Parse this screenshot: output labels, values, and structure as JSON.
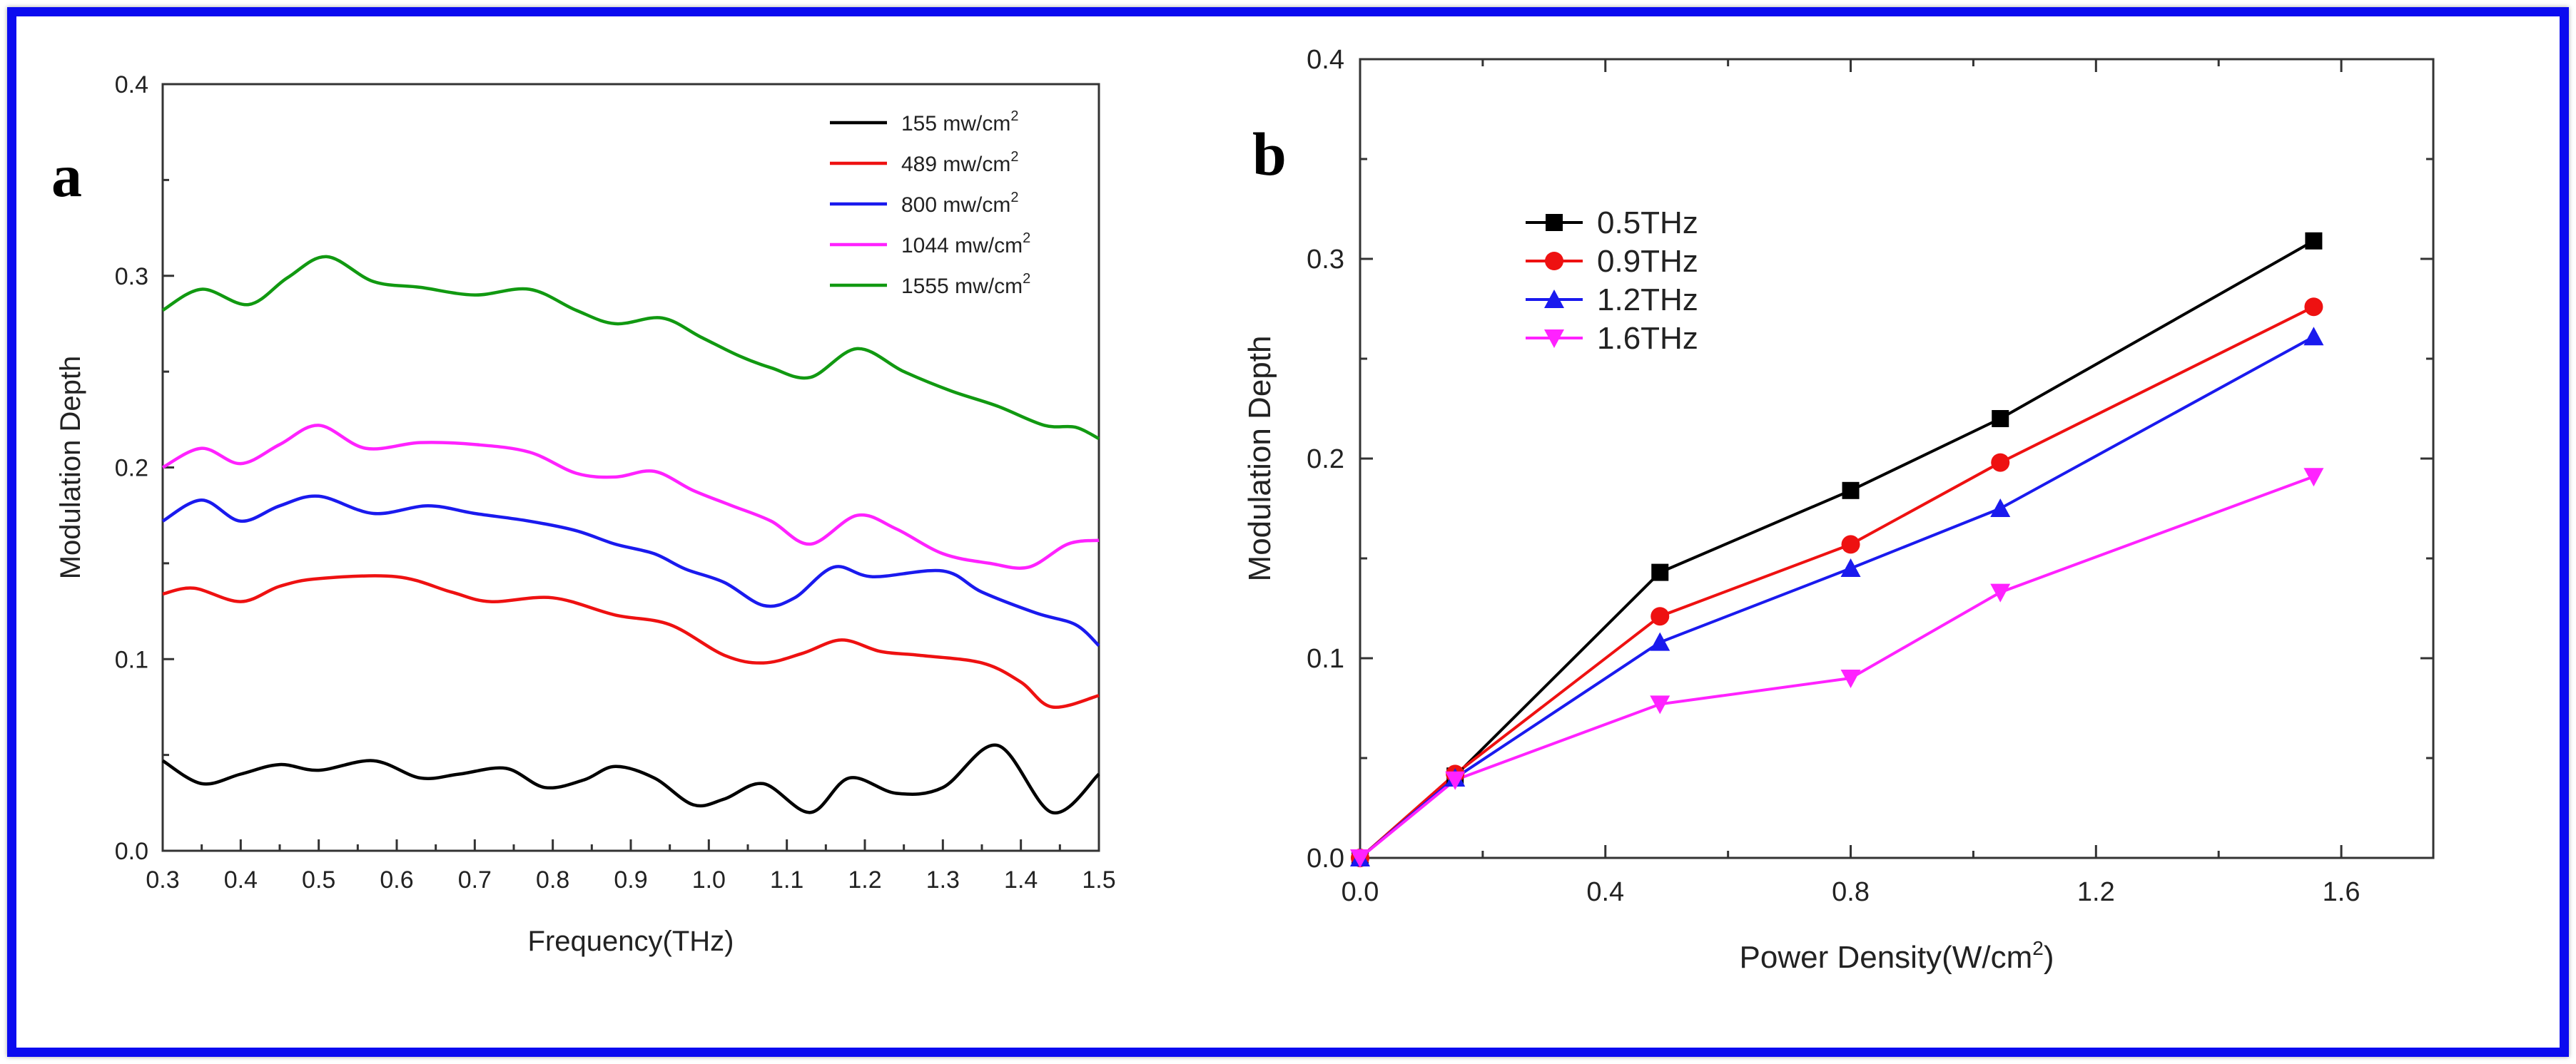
{
  "chart_data": [
    {
      "panel_label": "a",
      "type": "line",
      "xlabel": "Frequency(THz)",
      "ylabel": "Modulation Depth",
      "xlim": [
        0.3,
        1.5
      ],
      "ylim": [
        0.0,
        0.4
      ],
      "xticks": [
        "0.3",
        "0.4",
        "0.5",
        "0.6",
        "0.7",
        "0.8",
        "0.9",
        "1.0",
        "1.1",
        "1.2",
        "1.3",
        "1.4",
        "1.5"
      ],
      "yticks": [
        "0.0",
        "0.1",
        "0.2",
        "0.3",
        "0.4"
      ],
      "legend_position": "top-right",
      "unit_base": " mw/cm",
      "unit_sup": "2",
      "series": [
        {
          "name": "155",
          "color": "#000000",
          "x": [
            0.3,
            0.35,
            0.4,
            0.45,
            0.5,
            0.57,
            0.63,
            0.68,
            0.74,
            0.79,
            0.84,
            0.88,
            0.93,
            0.98,
            1.02,
            1.07,
            1.13,
            1.18,
            1.24,
            1.3,
            1.37,
            1.44,
            1.5
          ],
          "y": [
            0.047,
            0.035,
            0.04,
            0.045,
            0.042,
            0.047,
            0.038,
            0.04,
            0.043,
            0.033,
            0.037,
            0.044,
            0.038,
            0.024,
            0.027,
            0.035,
            0.02,
            0.038,
            0.03,
            0.033,
            0.055,
            0.02,
            0.04
          ]
        },
        {
          "name": "489",
          "color": "#ee1111",
          "x": [
            0.3,
            0.34,
            0.4,
            0.45,
            0.5,
            0.6,
            0.67,
            0.72,
            0.8,
            0.88,
            0.95,
            1.02,
            1.07,
            1.12,
            1.17,
            1.22,
            1.27,
            1.35,
            1.4,
            1.44,
            1.5
          ],
          "y": [
            0.134,
            0.137,
            0.13,
            0.138,
            0.142,
            0.143,
            0.135,
            0.13,
            0.132,
            0.123,
            0.118,
            0.102,
            0.098,
            0.103,
            0.11,
            0.104,
            0.102,
            0.098,
            0.088,
            0.075,
            0.081
          ]
        },
        {
          "name": "800",
          "color": "#1a1aee",
          "x": [
            0.3,
            0.35,
            0.4,
            0.45,
            0.5,
            0.57,
            0.64,
            0.7,
            0.77,
            0.83,
            0.88,
            0.93,
            0.97,
            1.02,
            1.07,
            1.11,
            1.16,
            1.21,
            1.3,
            1.35,
            1.42,
            1.47,
            1.5
          ],
          "y": [
            0.172,
            0.183,
            0.172,
            0.18,
            0.185,
            0.176,
            0.18,
            0.176,
            0.172,
            0.167,
            0.16,
            0.155,
            0.147,
            0.14,
            0.128,
            0.132,
            0.148,
            0.143,
            0.146,
            0.135,
            0.124,
            0.118,
            0.107
          ]
        },
        {
          "name": "1044",
          "color": "#ff22ff",
          "x": [
            0.3,
            0.35,
            0.4,
            0.45,
            0.5,
            0.56,
            0.63,
            0.7,
            0.77,
            0.83,
            0.88,
            0.93,
            0.98,
            1.03,
            1.08,
            1.13,
            1.19,
            1.24,
            1.3,
            1.36,
            1.41,
            1.46,
            1.5
          ],
          "y": [
            0.2,
            0.21,
            0.202,
            0.212,
            0.222,
            0.21,
            0.213,
            0.212,
            0.208,
            0.197,
            0.195,
            0.198,
            0.188,
            0.18,
            0.172,
            0.16,
            0.175,
            0.168,
            0.155,
            0.15,
            0.148,
            0.16,
            0.162
          ]
        },
        {
          "name": "1555",
          "color": "#119911",
          "x": [
            0.3,
            0.35,
            0.41,
            0.46,
            0.51,
            0.57,
            0.63,
            0.7,
            0.77,
            0.83,
            0.88,
            0.94,
            0.99,
            1.04,
            1.08,
            1.13,
            1.19,
            1.25,
            1.31,
            1.37,
            1.43,
            1.47,
            1.5
          ],
          "y": [
            0.282,
            0.293,
            0.285,
            0.299,
            0.31,
            0.297,
            0.294,
            0.29,
            0.293,
            0.282,
            0.275,
            0.278,
            0.268,
            0.258,
            0.252,
            0.247,
            0.262,
            0.25,
            0.24,
            0.232,
            0.222,
            0.221,
            0.215
          ]
        }
      ]
    },
    {
      "panel_label": "b",
      "type": "line",
      "xlabel_base": "Power Density(W/cm",
      "xlabel_sup": "2",
      "xlabel_end": ")",
      "ylabel": "Modulation Depth",
      "xlim": [
        0.0,
        1.75
      ],
      "ylim": [
        0.0,
        0.4
      ],
      "xticks": [
        "0.0",
        "0.4",
        "0.8",
        "1.2",
        "1.6"
      ],
      "yticks": [
        "0.0",
        "0.1",
        "0.2",
        "0.3",
        "0.4"
      ],
      "legend_position": "top-left",
      "x": [
        0.0,
        0.155,
        0.489,
        0.8,
        1.044,
        1.555
      ],
      "series": [
        {
          "name": "0.5THz",
          "color": "#000000",
          "marker": "square",
          "values": [
            0.0,
            0.041,
            0.143,
            0.184,
            0.22,
            0.309
          ]
        },
        {
          "name": "0.9THz",
          "color": "#ee1111",
          "marker": "circle",
          "values": [
            0.0,
            0.042,
            0.121,
            0.157,
            0.198,
            0.276
          ]
        },
        {
          "name": "1.2THz",
          "color": "#1a1aee",
          "marker": "triangle-up",
          "values": [
            0.0,
            0.04,
            0.108,
            0.145,
            0.175,
            0.261
          ]
        },
        {
          "name": "1.6THz",
          "color": "#ff22ff",
          "marker": "triangle-down",
          "values": [
            0.0,
            0.039,
            0.077,
            0.09,
            0.133,
            0.191
          ]
        }
      ]
    }
  ]
}
